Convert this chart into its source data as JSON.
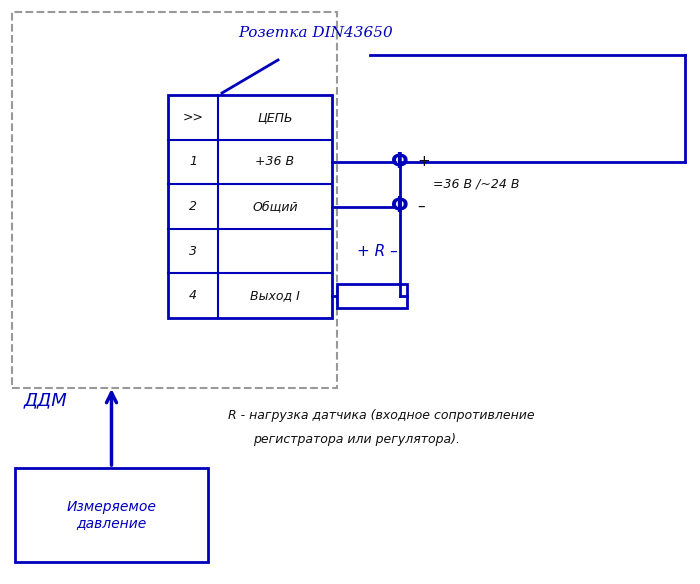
{
  "bg_color": "#ffffff",
  "blue": "#0000bb",
  "black": "#111111",
  "gray_dash": "#999999",
  "rows": [
    {
      "num": ">>",
      "text": "ЦЕПЬ"
    },
    {
      "num": "1",
      "text": "+36 В"
    },
    {
      "num": "2",
      "text": "Общий"
    },
    {
      "num": "3",
      "text": ""
    },
    {
      "num": "4",
      "text": "Выход I"
    }
  ],
  "label_rozhetka": "Розетка DIN43650",
  "label_ddm": "ДДМ",
  "label_voltage": "=36 В /~24 В",
  "label_r_note_1": "R - нагрузка датчика (входное сопротивление",
  "label_r_note_2": "регистратора или регулятора).",
  "label_pressure": "Измеряемое\nдавление",
  "label_plus_r_minus": "+ R –"
}
